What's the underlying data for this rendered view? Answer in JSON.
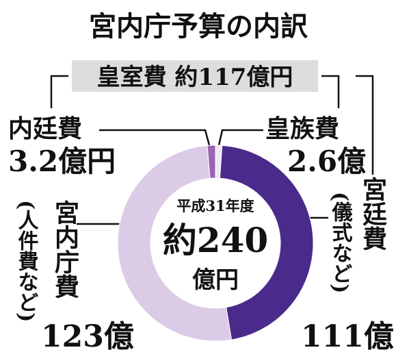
{
  "chart_data": {
    "type": "donut",
    "title": "宮内庁予算の内訳",
    "group_label": "皇室費 約117億円",
    "center_year": "平成31年度",
    "center_total": "約240",
    "center_unit": "億円",
    "categories": [
      "皇族費",
      "宮廷費",
      "宮内庁費",
      "内廷費"
    ],
    "notes": [
      null,
      "(儀式など)",
      "(人件費など)",
      null
    ],
    "values": [
      2.6,
      111,
      123,
      3.2
    ],
    "value_labels": [
      "2.6億",
      "111億",
      "123億",
      "3.2億円"
    ],
    "colors": [
      "#efe9f5",
      "#4a2a8a",
      "#dccbe6",
      "#9a64b2"
    ]
  }
}
